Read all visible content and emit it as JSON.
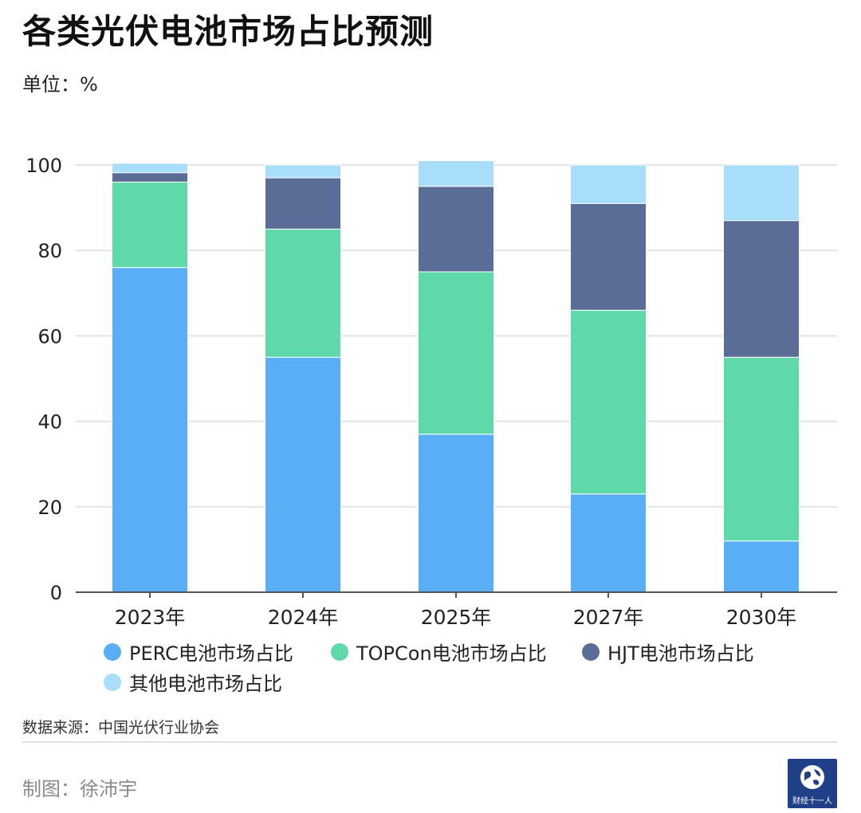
{
  "title": "各类光伏电池市场占比预测",
  "unit": "单位：%",
  "source": "数据来源：中国光伏行业协会",
  "credit": "制图：徐沛宇",
  "logo_text": "财经十一人",
  "colors": {
    "perc": "#5aaef5",
    "topcon": "#5fd9a9",
    "hjt": "#5a6d96",
    "other": "#a8defa",
    "grid": "#e3e3e3",
    "axis": "#555555",
    "text": "#222222"
  },
  "chart_data": {
    "type": "bar",
    "stacked": true,
    "categories": [
      "2023年",
      "2024年",
      "2025年",
      "2027年",
      "2030年"
    ],
    "series": [
      {
        "name": "PERC电池市场占比",
        "values": [
          76,
          55,
          37,
          23,
          12
        ]
      },
      {
        "name": "TOPCon电池市场占比",
        "values": [
          20,
          30,
          38,
          43,
          43
        ]
      },
      {
        "name": "HJT电池市场占比",
        "values": [
          2.2,
          12,
          20,
          25,
          32
        ]
      },
      {
        "name": "其他电池市场占比",
        "values": [
          2.2,
          3,
          6,
          9,
          13
        ]
      }
    ],
    "yticks": [
      "0",
      "20",
      "40",
      "60",
      "80",
      "100"
    ],
    "ylim": [
      0,
      100
    ],
    "grid": true,
    "legend_position": "bottom"
  }
}
